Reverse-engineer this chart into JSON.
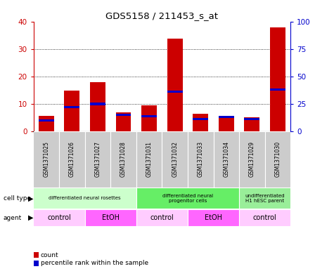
{
  "title": "GDS5158 / 211453_s_at",
  "samples": [
    "GSM1371025",
    "GSM1371026",
    "GSM1371027",
    "GSM1371028",
    "GSM1371031",
    "GSM1371032",
    "GSM1371033",
    "GSM1371034",
    "GSM1371029",
    "GSM1371030"
  ],
  "counts": [
    5.5,
    15.0,
    18.0,
    7.0,
    9.5,
    34.0,
    6.5,
    5.5,
    5.0,
    38.0
  ],
  "percentile_ranks": [
    10,
    22,
    25,
    15,
    14,
    36,
    11,
    13,
    11,
    38
  ],
  "ylim_left": [
    0,
    40
  ],
  "ylim_right": [
    0,
    100
  ],
  "yticks_left": [
    0,
    10,
    20,
    30,
    40
  ],
  "yticks_right": [
    0,
    25,
    50,
    75,
    100
  ],
  "bar_color": "#cc0000",
  "percentile_color": "#0000cc",
  "bar_width": 0.6,
  "cell_type_groups": [
    {
      "label": "differentiated neural rosettes",
      "start": 0,
      "end": 4,
      "color": "#ccffcc"
    },
    {
      "label": "differentiated neural\nprogenitor cells",
      "start": 4,
      "end": 8,
      "color": "#66ee66"
    },
    {
      "label": "undifferentiated\nH1 hESC parent",
      "start": 8,
      "end": 10,
      "color": "#99ee99"
    }
  ],
  "agent_groups": [
    {
      "label": "control",
      "start": 0,
      "end": 2,
      "color": "#ffccff"
    },
    {
      "label": "EtOH",
      "start": 2,
      "end": 4,
      "color": "#ff66ff"
    },
    {
      "label": "control",
      "start": 4,
      "end": 6,
      "color": "#ffccff"
    },
    {
      "label": "EtOH",
      "start": 6,
      "end": 8,
      "color": "#ff66ff"
    },
    {
      "label": "control",
      "start": 8,
      "end": 10,
      "color": "#ffccff"
    }
  ],
  "cell_type_label": "cell type",
  "agent_label": "agent",
  "legend_count_label": "count",
  "legend_percentile_label": "percentile rank within the sample",
  "bg_color": "#ffffff",
  "tick_color_left": "#cc0000",
  "tick_color_right": "#0000cc",
  "sample_bg_color": "#cccccc",
  "blue_bar_height": 0.8,
  "blue_bar_width": 0.6
}
